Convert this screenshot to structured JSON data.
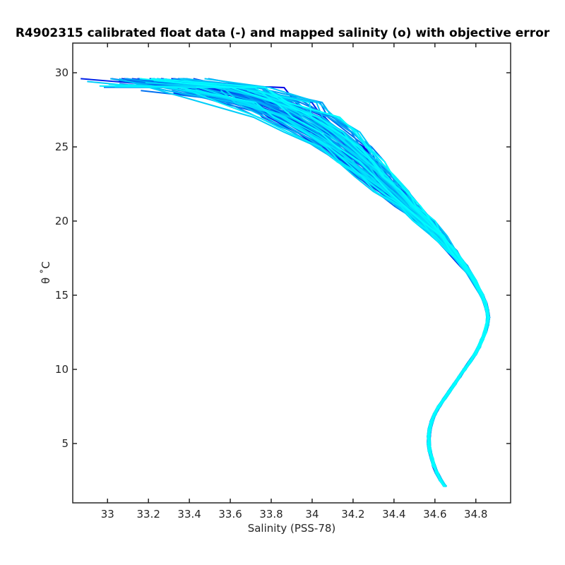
{
  "chart_data": {
    "type": "line",
    "title": "R4902315 calibrated float data (-) and mapped salinity (o) with objective error",
    "xlabel": "Salinity (PSS-78)",
    "ylabel": "θ ˚C",
    "xlim": [
      32.83,
      34.97
    ],
    "ylim": [
      1.0,
      32.0
    ],
    "xticks": [
      33,
      33.2,
      33.4,
      33.6,
      33.8,
      34,
      34.2,
      34.4,
      34.6,
      34.8
    ],
    "xtick_labels": [
      "33",
      "33.2",
      "33.4",
      "33.6",
      "33.8",
      "34",
      "34.2",
      "34.4",
      "34.6",
      "34.8"
    ],
    "yticks": [
      5,
      10,
      15,
      20,
      25,
      30
    ],
    "ytick_labels": [
      "5",
      "10",
      "15",
      "20",
      "25",
      "30"
    ],
    "grid": false,
    "color_range": [
      "#0000e6",
      "#00ffff"
    ],
    "profile_count": 90,
    "deep_theta": [
      2.1,
      2.5,
      3.0,
      3.5,
      4.0,
      4.5,
      5.0,
      5.5,
      6.0,
      6.5,
      7.0,
      7.5,
      8.0,
      8.5,
      9.0,
      9.5,
      10.0,
      10.5,
      11.0,
      11.5,
      12.0,
      12.5,
      13.0,
      13.5,
      14.0,
      14.5,
      15.0,
      16.0,
      17.0,
      18.0,
      19.0,
      20.0,
      21.0,
      22.0,
      23.0,
      24.0,
      25.0,
      26.0,
      27.0,
      28.0,
      29.0,
      29.6
    ],
    "deep_salinity": [
      34.65,
      34.63,
      34.61,
      34.595,
      34.585,
      34.575,
      34.57,
      34.57,
      34.575,
      34.585,
      34.6,
      34.62,
      34.645,
      34.67,
      34.695,
      34.72,
      34.745,
      34.77,
      34.795,
      34.815,
      34.83,
      34.845,
      34.855,
      34.86,
      34.855,
      34.845,
      34.83,
      34.79,
      34.74,
      34.68,
      34.62,
      34.55,
      34.47,
      34.39,
      34.31,
      34.23,
      34.15,
      34.05,
      33.93,
      33.77,
      33.55,
      33.2
    ]
  }
}
